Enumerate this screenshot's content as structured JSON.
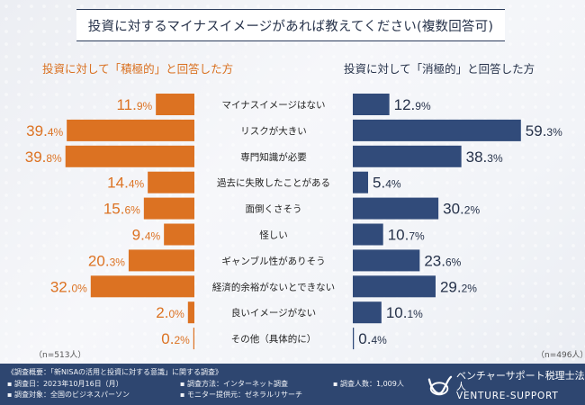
{
  "title": "投資に対するマイナスイメージがあれば教えてください(複数回答可)",
  "colors": {
    "positive": "#dc7222",
    "negative": "#314b7a",
    "navy": "#2e4670"
  },
  "groups": {
    "left": {
      "label": "投資に対して「積極的」と回答した方",
      "n": "（n=513人）"
    },
    "right": {
      "label": "投資に対して「消極的」と回答した方",
      "n": "（n=496人）"
    }
  },
  "chart_data": {
    "type": "bar",
    "orientation": "horizontal-butterfly",
    "title": "投資に対するマイナスイメージがあれば教えてください(複数回答可)",
    "categories": [
      "マイナスイメージはない",
      "リスクが大きい",
      "専門知識が必要",
      "過去に失敗したことがある",
      "面倒くさそう",
      "怪しい",
      "ギャンブル性がありそう",
      "経済的余裕がないとできない",
      "良いイメージがない",
      "その他（具体的に）"
    ],
    "series": [
      {
        "name": "投資に対して「積極的」と回答した方",
        "side": "left",
        "unit": "%",
        "values": [
          11.9,
          39.4,
          39.8,
          14.4,
          15.6,
          9.4,
          20.3,
          32.0,
          2.0,
          0.2
        ]
      },
      {
        "name": "投資に対して「消極的」と回答した方",
        "side": "right",
        "unit": "%",
        "values": [
          12.9,
          59.3,
          38.3,
          5.4,
          30.2,
          10.7,
          23.6,
          29.2,
          10.1,
          0.4
        ]
      }
    ],
    "xlabel": "",
    "ylabel": "",
    "grid": false,
    "legend": "top"
  },
  "footer": {
    "overview": "《調査概要：「新NISAの活用と投資に対する意識」に関する調査》",
    "date": "▪ 調査日：2023年10月16日（月）",
    "method": "▪ 調査方法：インターネット調査",
    "count": "▪ 調査人数：1,009人",
    "target": "▪ 調査対象：全国のビジネスパーソン",
    "provider": "▪ モニター提供元：ゼネラルリサーチ",
    "logo_jp": "ベンチャーサポート税理士法人",
    "logo_en": "VENTURE-SUPPORT"
  }
}
